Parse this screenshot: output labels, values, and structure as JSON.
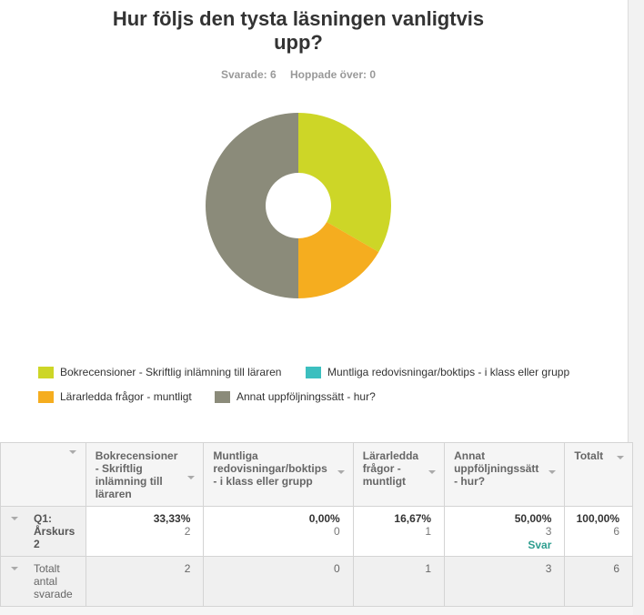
{
  "question": {
    "title": "Hur följs den tysta läsningen vanligtvis upp?",
    "answered": "Svarade: 6",
    "skipped": "Hoppade över: 0"
  },
  "chart_data": {
    "type": "pie",
    "categories": [
      "Bokrecensioner - Skriftlig inlämning till läraren",
      "Muntliga redovisningar/boktips - i klass eller grupp",
      "Lärarledda frågor - muntligt",
      "Annat uppföljningssätt - hur?"
    ],
    "values": [
      33.33,
      0.0,
      16.67,
      50.0
    ],
    "colors": [
      "#cdd627",
      "#3cbfbf",
      "#f5ad1f",
      "#8b8b7a"
    ],
    "donut": true
  },
  "legend": [
    {
      "label": "Bokrecensioner - Skriftlig inlämning till läraren",
      "color": "#cdd627"
    },
    {
      "label": "Muntliga redovisningar/boktips - i klass eller grupp",
      "color": "#3cbfbf"
    },
    {
      "label": "Lärarledda frågor - muntligt",
      "color": "#f5ad1f"
    },
    {
      "label": "Annat uppföljningssätt - hur?",
      "color": "#8b8b7a"
    }
  ],
  "table": {
    "headers": [
      "Bokrecensioner - Skriftlig inlämning till läraren",
      "Muntliga redovisningar/boktips - i klass eller grupp",
      "Lärarledda frågor - muntligt",
      "Annat uppföljningssätt - hur?",
      "Totalt"
    ],
    "row": {
      "label": "Q1: Årskurs 2",
      "cells": [
        {
          "pct": "33,33%",
          "count": "2"
        },
        {
          "pct": "0,00%",
          "count": "0"
        },
        {
          "pct": "16,67%",
          "count": "1"
        },
        {
          "pct": "50,00%",
          "count": "3",
          "link": "Svar"
        },
        {
          "pct": "100,00%",
          "count": "6"
        }
      ]
    },
    "totals": {
      "label": "Totalt antal svarade",
      "cells": [
        "2",
        "0",
        "1",
        "3",
        "6"
      ]
    }
  }
}
